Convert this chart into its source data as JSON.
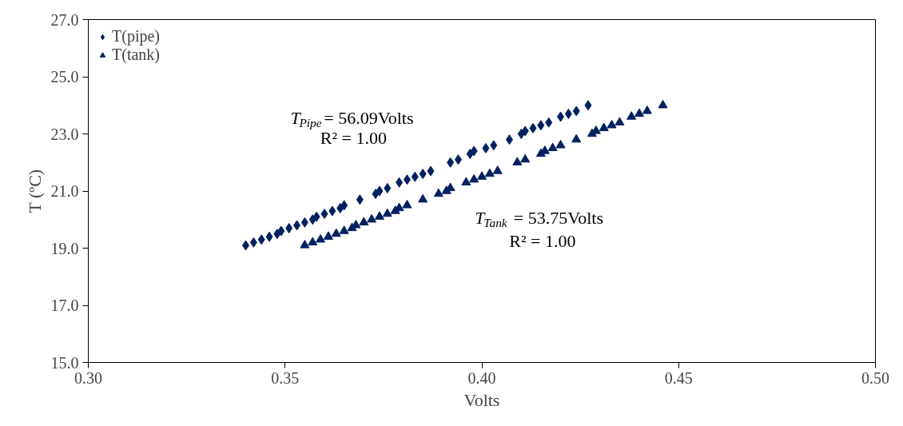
{
  "chart_data": {
    "type": "scatter",
    "xlabel": "Volts",
    "ylabel": "T (ºC)",
    "xlim": [
      0.3,
      0.5
    ],
    "ylim": [
      15.0,
      27.0
    ],
    "xticks": [
      {
        "value": 0.3,
        "label": "0.30"
      },
      {
        "value": 0.35,
        "label": "0.35"
      },
      {
        "value": 0.4,
        "label": "0.40"
      },
      {
        "value": 0.45,
        "label": "0.45"
      },
      {
        "value": 0.5,
        "label": "0.50"
      }
    ],
    "yticks": [
      {
        "value": 15,
        "label": "15.0"
      },
      {
        "value": 17,
        "label": "17.0"
      },
      {
        "value": 19,
        "label": "19.0"
      },
      {
        "value": 21,
        "label": "21.0"
      },
      {
        "value": 23,
        "label": "23.0"
      },
      {
        "value": 25,
        "label": "25.0"
      },
      {
        "value": 27,
        "label": "27.0"
      }
    ],
    "grid": false,
    "legend": "top left",
    "series": [
      {
        "name": "T(pipe)",
        "color": "#002060",
        "marker": "diamond",
        "x": [
          0.34,
          0.342,
          0.344,
          0.346,
          0.348,
          0.349,
          0.351,
          0.353,
          0.355,
          0.357,
          0.358,
          0.36,
          0.362,
          0.364,
          0.365,
          0.369,
          0.373,
          0.374,
          0.376,
          0.379,
          0.381,
          0.383,
          0.385,
          0.387,
          0.392,
          0.394,
          0.397,
          0.398,
          0.401,
          0.403,
          0.407,
          0.41,
          0.411,
          0.413,
          0.415,
          0.417,
          0.42,
          0.422,
          0.424,
          0.427
        ],
        "values": [
          19.1,
          19.2,
          19.3,
          19.4,
          19.5,
          19.6,
          19.7,
          19.8,
          19.9,
          20.0,
          20.1,
          20.2,
          20.3,
          20.4,
          20.5,
          20.7,
          20.9,
          21.0,
          21.1,
          21.3,
          21.4,
          21.5,
          21.6,
          21.7,
          22.0,
          22.1,
          22.3,
          22.4,
          22.5,
          22.6,
          22.8,
          23.0,
          23.1,
          23.2,
          23.3,
          23.4,
          23.6,
          23.7,
          23.8,
          24.0
        ]
      },
      {
        "name": "T(tank)",
        "color": "#002060",
        "marker": "triangle",
        "x": [
          0.355,
          0.357,
          0.359,
          0.361,
          0.363,
          0.365,
          0.367,
          0.368,
          0.37,
          0.372,
          0.374,
          0.376,
          0.378,
          0.379,
          0.381,
          0.385,
          0.389,
          0.391,
          0.392,
          0.396,
          0.398,
          0.4,
          0.402,
          0.404,
          0.409,
          0.411,
          0.415,
          0.416,
          0.418,
          0.42,
          0.424,
          0.428,
          0.429,
          0.431,
          0.433,
          0.435,
          0.438,
          0.44,
          0.442,
          0.446
        ],
        "values": [
          19.1,
          19.2,
          19.3,
          19.4,
          19.5,
          19.6,
          19.7,
          19.8,
          19.9,
          20.0,
          20.1,
          20.2,
          20.3,
          20.4,
          20.5,
          20.7,
          20.9,
          21.0,
          21.1,
          21.3,
          21.4,
          21.5,
          21.6,
          21.7,
          22.0,
          22.1,
          22.3,
          22.4,
          22.5,
          22.6,
          22.8,
          23.0,
          23.1,
          23.2,
          23.3,
          23.4,
          23.6,
          23.7,
          23.8,
          24.0
        ]
      }
    ],
    "annotations": [
      "T$_{Pipe}$= 56.09Volts",
      "R² = 1.00",
      "T$_{Tank}$ = 53.75Volts",
      "R² = 1.00"
    ]
  }
}
